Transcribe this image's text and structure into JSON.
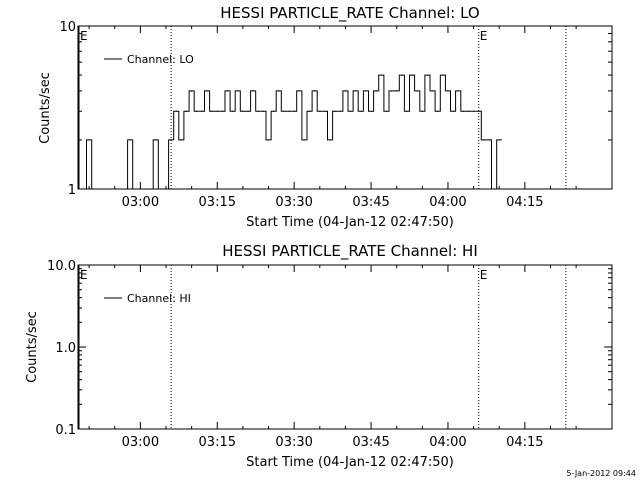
{
  "colors": {
    "background": "#ffffff",
    "foreground": "#000000"
  },
  "timestamp": "5-Jan-2012 09:44",
  "chart_data": [
    {
      "type": "line",
      "title": "HESSI PARTICLE_RATE Channel: LO",
      "xlabel": "Start Time (04-Jan-12 02:47:50)",
      "ylabel": "Counts/sec",
      "ylog": true,
      "ylim": [
        1,
        10
      ],
      "yticks": [
        1,
        10
      ],
      "ytick_labels": [
        "1",
        "10"
      ],
      "xlim": [
        "02:47:50",
        "04:32:00"
      ],
      "xticks": [
        "03:00",
        "03:15",
        "03:30",
        "03:45",
        "04:00",
        "04:15"
      ],
      "grid": false,
      "legend": "top-left",
      "series": [
        {
          "name": "Channel: LO",
          "x": [
            "02:49",
            "02:50",
            "02:51",
            "02:57",
            "02:58",
            "02:59",
            "03:00",
            "03:01",
            "03:02",
            "03:03",
            "03:04",
            "03:05",
            "03:06",
            "03:07",
            "03:08",
            "03:09",
            "03:10",
            "03:11",
            "03:12",
            "03:13",
            "03:14",
            "03:15",
            "03:16",
            "03:17",
            "03:18",
            "03:19",
            "03:20",
            "03:21",
            "03:22",
            "03:23",
            "03:24",
            "03:25",
            "03:26",
            "03:27",
            "03:28",
            "03:29",
            "03:30",
            "03:31",
            "03:32",
            "03:33",
            "03:34",
            "03:35",
            "03:36",
            "03:37",
            "03:38",
            "03:39",
            "03:40",
            "03:41",
            "03:42",
            "03:43",
            "03:44",
            "03:45",
            "03:46",
            "03:47",
            "03:48",
            "03:49",
            "03:50",
            "03:51",
            "03:52",
            "03:53",
            "03:54",
            "03:55",
            "03:56",
            "03:57",
            "03:58",
            "03:59",
            "04:00",
            "04:01",
            "04:02",
            "04:03",
            "04:04",
            "04:05",
            "04:06",
            "04:07",
            "04:08",
            "04:09",
            "04:10"
          ],
          "values": [
            1,
            2,
            1,
            1,
            2,
            1,
            1,
            1,
            1,
            2,
            1,
            1,
            2,
            3,
            2,
            3,
            4,
            3,
            3,
            4,
            3,
            3,
            3,
            4,
            3,
            4,
            3,
            3,
            4,
            3,
            3,
            2,
            3,
            4,
            3,
            3,
            3,
            4,
            2,
            3,
            4,
            3,
            3,
            2,
            3,
            3,
            4,
            3,
            4,
            3,
            4,
            3,
            4,
            5,
            3,
            4,
            4,
            5,
            3,
            5,
            4,
            3,
            5,
            4,
            3,
            5,
            4,
            3,
            4,
            3,
            3,
            3,
            3,
            2,
            2,
            1,
            2
          ]
        }
      ],
      "vertical_markers": [
        {
          "time": "02:48",
          "label": "E",
          "style": "solid"
        },
        {
          "time": "03:06",
          "label": "",
          "style": "dotted"
        },
        {
          "time": "04:06",
          "label": "E",
          "style": "dotted"
        },
        {
          "time": "04:23",
          "label": "",
          "style": "dotted"
        }
      ]
    },
    {
      "type": "line",
      "title": "HESSI PARTICLE_RATE Channel: HI",
      "xlabel": "Start Time (04-Jan-12 02:47:50)",
      "ylabel": "Counts/sec",
      "ylog": true,
      "ylim": [
        0.1,
        10
      ],
      "yticks": [
        0.1,
        1,
        10
      ],
      "ytick_labels": [
        "0.1",
        "1.0",
        "10.0"
      ],
      "xlim": [
        "02:47:50",
        "04:32:00"
      ],
      "xticks": [
        "03:00",
        "03:15",
        "03:30",
        "03:45",
        "04:00",
        "04:15"
      ],
      "grid": false,
      "legend": "top-left",
      "series": [
        {
          "name": "Channel: HI",
          "x": [],
          "values": []
        }
      ],
      "vertical_markers": [
        {
          "time": "02:48",
          "label": "E",
          "style": "solid"
        },
        {
          "time": "03:06",
          "label": "",
          "style": "dotted"
        },
        {
          "time": "04:06",
          "label": "E",
          "style": "dotted"
        },
        {
          "time": "04:23",
          "label": "",
          "style": "dotted"
        }
      ]
    }
  ]
}
